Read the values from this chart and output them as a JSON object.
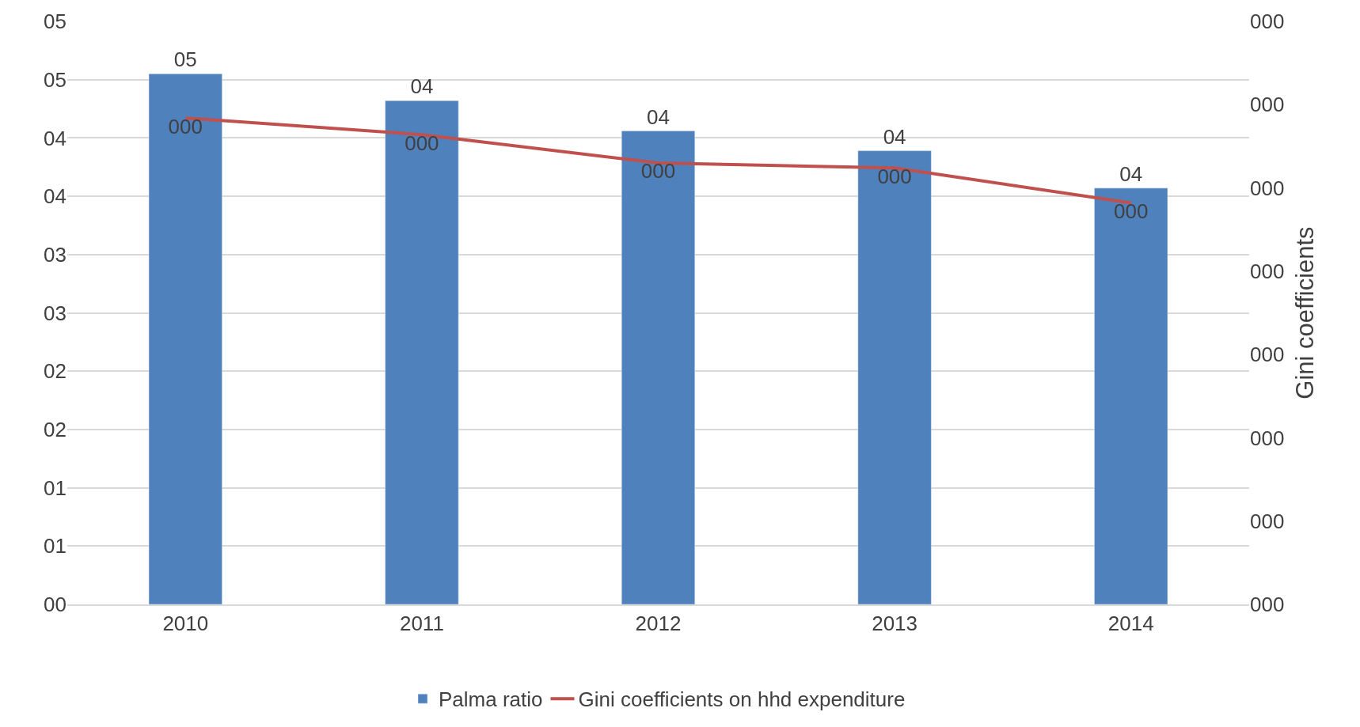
{
  "chart_data": {
    "type": "bar",
    "categories": [
      "2010",
      "2011",
      "2012",
      "2013",
      "2014"
    ],
    "y2label": "Gini coefficients",
    "series": [
      {
        "name": "Palma ratio",
        "color": "#4f81bd",
        "values": [
          4.55,
          4.32,
          4.06,
          3.89,
          3.57
        ],
        "value_labels": [
          "05",
          "04",
          "04",
          "04",
          "04"
        ]
      },
      {
        "name": "Gini coefficients on hhd expenditure",
        "type": "line",
        "axis": "y2",
        "color": "#c0504d",
        "values": [
          0.292,
          0.282,
          0.265,
          0.262,
          0.241
        ],
        "value_labels": [
          "000",
          "000",
          "000",
          "000",
          "000"
        ]
      }
    ],
    "ylim": [
      0,
      5
    ],
    "yticks": [
      {
        "value": 0,
        "label": "00"
      },
      {
        "value": 0.5,
        "label": "01"
      },
      {
        "value": 1,
        "label": "01"
      },
      {
        "value": 1.5,
        "label": "02"
      },
      {
        "value": 2,
        "label": "02"
      },
      {
        "value": 2.5,
        "label": "03"
      },
      {
        "value": 3,
        "label": "03"
      },
      {
        "value": 3.5,
        "label": "04"
      },
      {
        "value": 4,
        "label": "04"
      },
      {
        "value": 4.5,
        "label": "05"
      },
      {
        "value": 5,
        "label": "05"
      }
    ],
    "y2lim": [
      0,
      0.35
    ],
    "y2ticks": [
      {
        "value": 0,
        "label": "000"
      },
      {
        "value": 0.05,
        "label": "000"
      },
      {
        "value": 0.1,
        "label": "000"
      },
      {
        "value": 0.15,
        "label": "000"
      },
      {
        "value": 0.2,
        "label": "000"
      },
      {
        "value": 0.25,
        "label": "000"
      },
      {
        "value": 0.3,
        "label": "000"
      },
      {
        "value": 0.35,
        "label": "000"
      }
    ],
    "grid": "y",
    "legend": "bottom"
  }
}
